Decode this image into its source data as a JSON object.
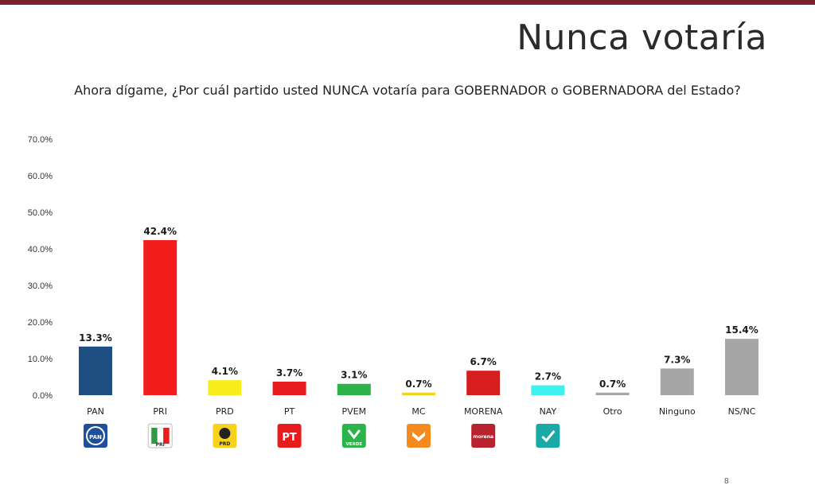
{
  "header": {
    "title": "Nunca votaría",
    "subtitle": "Ahora dígame, ¿Por cuál partido usted NUNCA votaría para GOBERNADOR o GOBERNADORA del Estado?"
  },
  "page_number": "8",
  "chart_data": {
    "type": "bar",
    "title": "",
    "xlabel": "",
    "ylabel": "",
    "ylim": [
      0,
      70
    ],
    "yticks": [
      "70.0%",
      "60.0%",
      "50.0%",
      "40.0%",
      "30.0%",
      "20.0%",
      "10.0%",
      "0.0%"
    ],
    "ytick_values": [
      70,
      60,
      50,
      40,
      30,
      20,
      10,
      0
    ],
    "grid": false,
    "legend": "none",
    "categories": [
      "PAN",
      "PRI",
      "PRD",
      "PT",
      "PVEM",
      "MC",
      "MORENA",
      "NAY",
      "Otro",
      "Ninguno",
      "NS/NC"
    ],
    "values": [
      13.3,
      42.4,
      4.1,
      3.7,
      3.1,
      0.7,
      6.7,
      2.7,
      0.7,
      7.3,
      15.4
    ],
    "value_labels": [
      "13.3%",
      "42.4%",
      "4.1%",
      "3.7%",
      "3.1%",
      "0.7%",
      "6.7%",
      "2.7%",
      "0.7%",
      "7.3%",
      "15.4%"
    ],
    "colors": [
      "#1f4e82",
      "#f21d1d",
      "#f7ec1c",
      "#e81c1c",
      "#2cb34a",
      "#f7d21c",
      "#d61e1e",
      "#3ff2ef",
      "#a6a6a6",
      "#a6a6a6",
      "#a6a6a6"
    ],
    "logos": [
      {
        "icon": "pan-logo-icon",
        "text": "PAN",
        "bg": "#1f4e9c"
      },
      {
        "icon": "pri-logo-icon",
        "text": "PRI",
        "bg": "#ffffff"
      },
      {
        "icon": "prd-logo-icon",
        "text": "PRD",
        "bg": "#f7d21c"
      },
      {
        "icon": "pt-logo-icon",
        "text": "PT",
        "bg": "#e81c1c"
      },
      {
        "icon": "pvem-logo-icon",
        "text": "VERDE",
        "bg": "#2cb34a"
      },
      {
        "icon": "mc-logo-icon",
        "text": "",
        "bg": "#f58a1f"
      },
      {
        "icon": "morena-logo-icon",
        "text": "morena",
        "bg": "#b8232e"
      },
      {
        "icon": "nay-logo-icon",
        "text": "",
        "bg": "#1aa9a6"
      }
    ]
  }
}
